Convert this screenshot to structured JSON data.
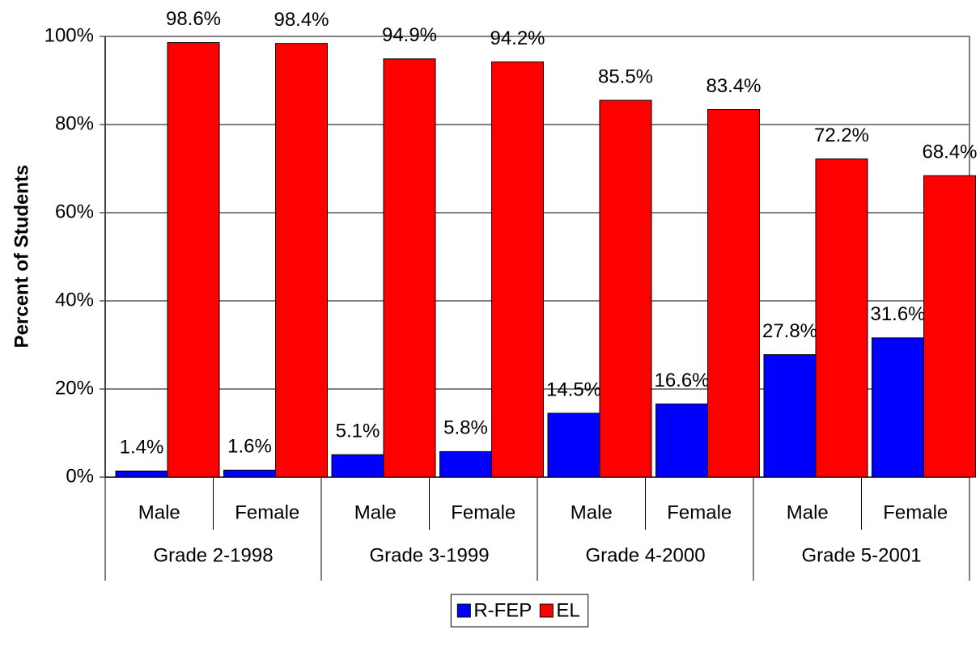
{
  "chart_data": {
    "type": "bar",
    "y_label": "Percent of Students",
    "categories": [
      "Male",
      "Female",
      "Male",
      "Female",
      "Male",
      "Female",
      "Male",
      "Female"
    ],
    "groups": [
      "Grade 2-1998",
      "Grade 3-1999",
      "Grade 4-2000",
      "Grade 5-2001"
    ],
    "series": [
      {
        "name": "R-FEP",
        "color": "#0000ff",
        "values": [
          1.4,
          1.6,
          5.1,
          5.8,
          14.5,
          16.6,
          27.8,
          31.6
        ],
        "value_labels": [
          "1.4%",
          "1.6%",
          "5.1%",
          "5.8%",
          "14.5%",
          "16.6%",
          "27.8%",
          "31.6%"
        ]
      },
      {
        "name": "EL",
        "color": "#ff0000",
        "values": [
          98.6,
          98.4,
          94.9,
          94.2,
          85.5,
          83.4,
          72.2,
          68.4
        ],
        "value_labels": [
          "98.6%",
          "98.4%",
          "94.9%",
          "94.2%",
          "85.5%",
          "83.4%",
          "72.2%",
          "68.4%"
        ]
      }
    ],
    "ylim": [
      0,
      100
    ],
    "yticks": [
      {
        "value": 0,
        "label": "0%"
      },
      {
        "value": 20,
        "label": "20%"
      },
      {
        "value": 40,
        "label": "40%"
      },
      {
        "value": 60,
        "label": "60%"
      },
      {
        "value": 80,
        "label": "80%"
      },
      {
        "value": 100,
        "label": "100%"
      }
    ],
    "grid": true,
    "legend": "bottom"
  }
}
